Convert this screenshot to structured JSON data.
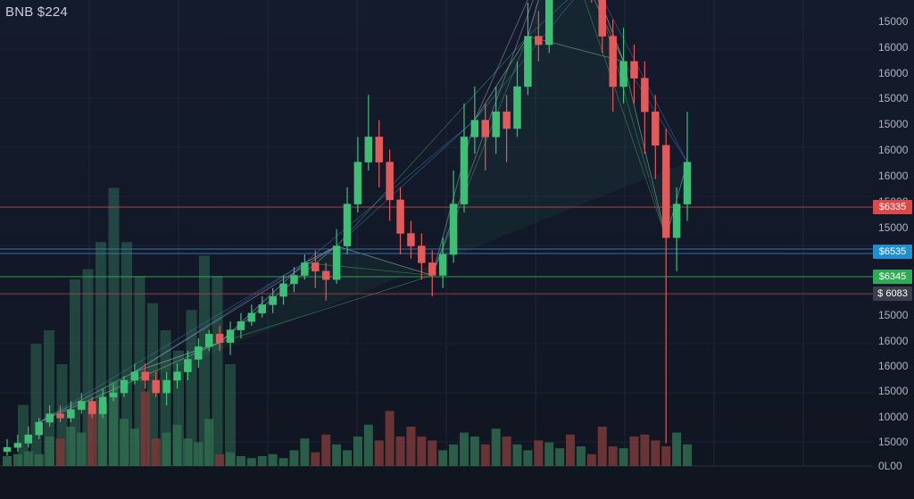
{
  "title": "BNB $224",
  "colors": {
    "background": "#141a2a",
    "up": "#3fbf76",
    "down": "#e25a5a",
    "red_line": "#c04a4a",
    "blue_line": "#3a7fb8",
    "green_line": "#35b45a",
    "red_tag": "#e04848",
    "blue_tag": "#1e8fd0",
    "green_tag": "#2faa55",
    "gray_tag": "#3a3f4a"
  },
  "price_ticks": [
    "15000",
    "16000",
    "16000",
    "15000",
    "15000",
    "16000",
    "16000",
    "15000",
    "15000",
    "15000",
    "16000",
    "16000",
    "15000",
    "10000",
    "15000",
    "0L00"
  ],
  "price_tags": [
    {
      "label": "$6335",
      "color": "#e04848"
    },
    {
      "label": "$6535",
      "color": "#1e8fd0"
    },
    {
      "label": "$6345",
      "color": "#2faa55"
    },
    {
      "label": "$ 6083",
      "color": "#3a3f4a"
    }
  ],
  "chart_data": {
    "type": "candlestick",
    "title": "BNB $224",
    "y_tick_labels": [
      "15000",
      "16000",
      "16000",
      "15000",
      "15000",
      "16000",
      "16000",
      "15000",
      "15000",
      "15000",
      "16000",
      "16000",
      "15000",
      "10000",
      "15000",
      "0L00"
    ],
    "grid": true,
    "horizontal_levels": [
      "$6335",
      "$6535",
      "$6345",
      "$ 6083"
    ],
    "note": "Price values read as relative levels; y-axis labels printed as shown (non-monotonic).",
    "candles": [
      [
        0.03,
        0.04,
        0.02,
        0.06
      ],
      [
        0.04,
        0.05,
        0.03,
        0.07
      ],
      [
        0.05,
        0.07,
        0.04,
        0.09
      ],
      [
        0.07,
        0.1,
        0.06,
        0.11
      ],
      [
        0.1,
        0.12,
        0.09,
        0.14
      ],
      [
        0.12,
        0.11,
        0.1,
        0.14
      ],
      [
        0.11,
        0.13,
        0.1,
        0.15
      ],
      [
        0.13,
        0.15,
        0.12,
        0.17
      ],
      [
        0.15,
        0.12,
        0.11,
        0.16
      ],
      [
        0.12,
        0.16,
        0.11,
        0.18
      ],
      [
        0.16,
        0.17,
        0.15,
        0.19
      ],
      [
        0.17,
        0.2,
        0.16,
        0.21
      ],
      [
        0.2,
        0.22,
        0.19,
        0.24
      ],
      [
        0.22,
        0.2,
        0.18,
        0.24
      ],
      [
        0.2,
        0.17,
        0.16,
        0.22
      ],
      [
        0.17,
        0.2,
        0.14,
        0.22
      ],
      [
        0.2,
        0.22,
        0.18,
        0.24
      ],
      [
        0.22,
        0.25,
        0.2,
        0.27
      ],
      [
        0.25,
        0.28,
        0.23,
        0.3
      ],
      [
        0.28,
        0.31,
        0.27,
        0.32
      ],
      [
        0.31,
        0.29,
        0.27,
        0.33
      ],
      [
        0.29,
        0.32,
        0.26,
        0.34
      ],
      [
        0.32,
        0.34,
        0.3,
        0.36
      ],
      [
        0.34,
        0.36,
        0.33,
        0.38
      ],
      [
        0.36,
        0.38,
        0.35,
        0.4
      ],
      [
        0.38,
        0.4,
        0.36,
        0.42
      ],
      [
        0.4,
        0.43,
        0.38,
        0.45
      ],
      [
        0.43,
        0.45,
        0.41,
        0.47
      ],
      [
        0.45,
        0.48,
        0.44,
        0.5
      ],
      [
        0.48,
        0.46,
        0.42,
        0.51
      ],
      [
        0.46,
        0.44,
        0.39,
        0.48
      ],
      [
        0.44,
        0.52,
        0.43,
        0.56
      ],
      [
        0.52,
        0.62,
        0.5,
        0.66
      ],
      [
        0.62,
        0.72,
        0.6,
        0.78
      ],
      [
        0.72,
        0.78,
        0.7,
        0.88
      ],
      [
        0.78,
        0.72,
        0.66,
        0.82
      ],
      [
        0.72,
        0.63,
        0.58,
        0.75
      ],
      [
        0.63,
        0.55,
        0.5,
        0.66
      ],
      [
        0.55,
        0.52,
        0.49,
        0.58
      ],
      [
        0.52,
        0.48,
        0.44,
        0.55
      ],
      [
        0.48,
        0.45,
        0.4,
        0.51
      ],
      [
        0.45,
        0.5,
        0.42,
        0.54
      ],
      [
        0.5,
        0.62,
        0.48,
        0.7
      ],
      [
        0.62,
        0.78,
        0.6,
        0.86
      ],
      [
        0.78,
        0.82,
        0.74,
        0.9
      ],
      [
        0.82,
        0.78,
        0.7,
        0.86
      ],
      [
        0.78,
        0.84,
        0.74,
        0.9
      ],
      [
        0.84,
        0.8,
        0.72,
        0.88
      ],
      [
        0.8,
        0.9,
        0.78,
        0.96
      ],
      [
        0.9,
        1.02,
        0.88,
        1.1
      ],
      [
        1.02,
        1.0,
        0.96,
        1.08
      ],
      [
        1.0,
        1.14,
        0.98,
        1.22
      ],
      [
        1.14,
        1.28,
        1.12,
        1.36
      ],
      [
        1.28,
        1.22,
        1.14,
        1.32
      ],
      [
        1.22,
        1.3,
        1.18,
        1.36
      ],
      [
        1.3,
        1.16,
        1.1,
        1.34
      ],
      [
        1.16,
        1.02,
        0.98,
        1.2
      ],
      [
        1.02,
        0.9,
        0.84,
        1.06
      ],
      [
        0.9,
        0.96,
        0.86,
        1.04
      ],
      [
        0.96,
        0.92,
        0.86,
        1.0
      ],
      [
        0.92,
        0.84,
        0.74,
        0.96
      ],
      [
        0.84,
        0.76,
        0.68,
        0.88
      ],
      [
        0.76,
        0.54,
        0.05,
        0.8
      ],
      [
        0.54,
        0.62,
        0.46,
        0.66
      ],
      [
        0.62,
        0.72,
        0.58,
        0.84
      ]
    ],
    "volume": [
      0.1,
      0.12,
      0.15,
      0.12,
      0.3,
      0.28,
      0.4,
      0.34,
      0.62,
      0.64,
      0.86,
      0.48,
      0.38,
      0.76,
      0.28,
      0.34,
      0.42,
      0.28,
      0.24,
      0.48,
      0.12,
      0.14,
      0.1,
      0.08,
      0.1,
      0.12,
      0.08,
      0.16,
      0.28,
      0.14,
      0.32,
      0.22,
      0.16,
      0.3,
      0.42,
      0.26,
      0.56,
      0.3,
      0.4,
      0.3,
      0.26,
      0.16,
      0.22,
      0.34,
      0.3,
      0.22,
      0.38,
      0.3,
      0.22,
      0.16,
      0.26,
      0.24,
      0.18,
      0.32,
      0.2,
      0.12,
      0.4,
      0.2,
      0.18,
      0.3,
      0.32,
      0.26,
      0.2,
      0.34,
      0.22
    ]
  }
}
